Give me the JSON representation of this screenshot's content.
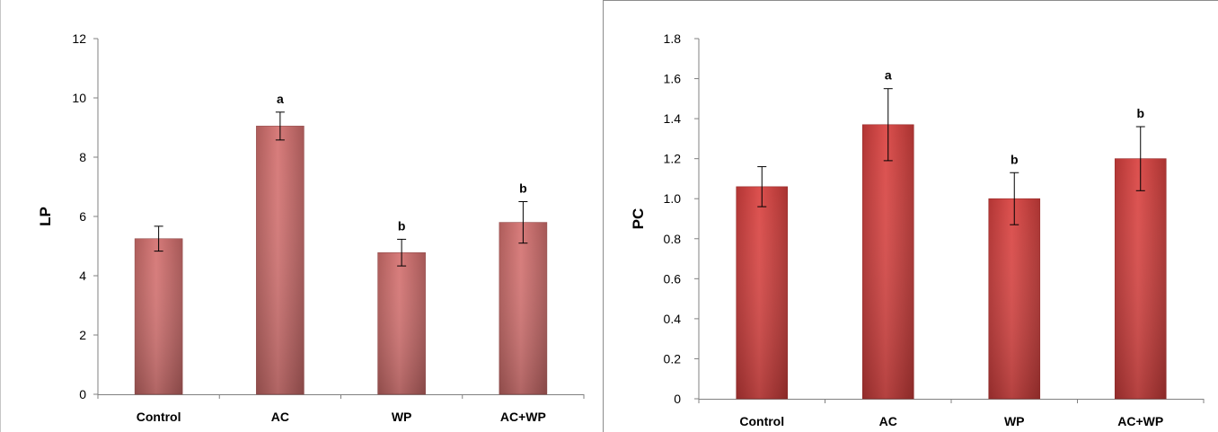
{
  "chart_data": [
    {
      "type": "bar",
      "ylabel": "LP",
      "xlabel": "",
      "title": "",
      "categories": [
        "Control",
        "AC",
        "WP",
        "AC+WP"
      ],
      "values": [
        5.25,
        9.05,
        4.78,
        5.8
      ],
      "errors": [
        0.42,
        0.47,
        0.45,
        0.7
      ],
      "annotations": [
        "",
        "a",
        "b",
        "b"
      ],
      "ylim": [
        0,
        12
      ],
      "yticks": [
        0,
        2,
        4,
        6,
        8,
        10,
        12
      ],
      "ytick_labels": [
        "0",
        "2",
        "4",
        "6",
        "8",
        "10",
        "12"
      ],
      "bar_color": "#d4706e",
      "grid": false,
      "legend": "none"
    },
    {
      "type": "bar",
      "ylabel": "PC",
      "xlabel": "",
      "title": "",
      "categories": [
        "Control",
        "AC",
        "WP",
        "AC+WP"
      ],
      "values": [
        1.06,
        1.37,
        1.0,
        1.2
      ],
      "errors": [
        0.1,
        0.18,
        0.13,
        0.16
      ],
      "annotations": [
        "",
        "a",
        "b",
        "b"
      ],
      "ylim": [
        0,
        1.8
      ],
      "yticks": [
        0,
        0.2,
        0.4,
        0.6,
        0.8,
        1.0,
        1.2,
        1.4,
        1.6,
        1.8
      ],
      "ytick_labels": [
        "0",
        "0.2",
        "0.4",
        "0.6",
        "0.8",
        "1.0",
        "1.2",
        "1.4",
        "1.6",
        "1.8"
      ],
      "bar_color": "#d9413f",
      "grid": false,
      "legend": "none"
    }
  ]
}
